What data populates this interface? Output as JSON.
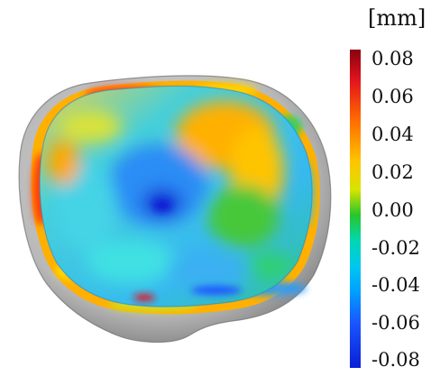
{
  "legend": {
    "unit": "[mm]",
    "ticks": [
      "0.08",
      "0.06",
      "0.04",
      "0.02",
      "0.00",
      "-0.02",
      "-0.04",
      "-0.06",
      "-0.08"
    ],
    "colors": [
      "#8b0010",
      "#e4151d",
      "#ff6a00",
      "#ffc400",
      "#29c52a",
      "#00d8b0",
      "#00c7ef",
      "#1a55ff",
      "#0a1fd6"
    ]
  }
}
